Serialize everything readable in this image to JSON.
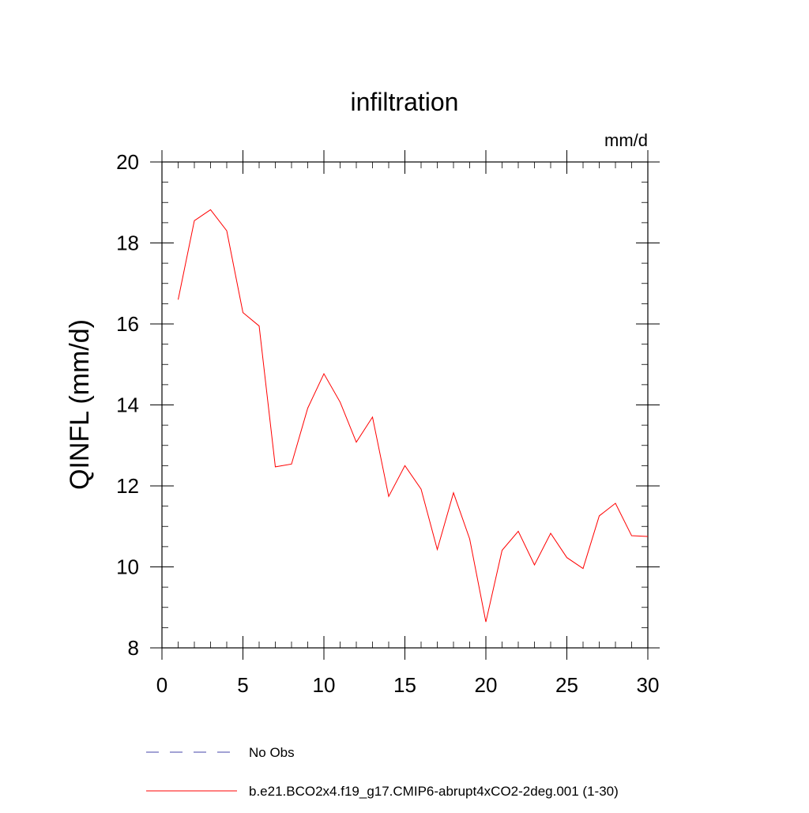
{
  "chart_data": {
    "type": "line",
    "title": "infiltration",
    "units_label": "mm/d",
    "ylabel": "QINFL  (mm/d)",
    "xlabel": "",
    "xlim": [
      0,
      30
    ],
    "ylim": [
      8,
      20
    ],
    "x_ticks": [
      0,
      5,
      10,
      15,
      20,
      25,
      30
    ],
    "y_ticks": [
      8,
      10,
      12,
      14,
      16,
      18,
      20
    ],
    "x_tick_labels": [
      "0",
      "5",
      "10",
      "15",
      "20",
      "25",
      "30"
    ],
    "y_tick_labels": [
      "8",
      "10",
      "12",
      "14",
      "16",
      "18",
      "20"
    ],
    "grid": false,
    "legend_position": "bottom",
    "series": [
      {
        "name": "b.e21.BCO2x4.f19_g17.CMIP6-abrupt4xCO2-2deg.001 (1-30)",
        "color": "#ff0000",
        "style": "solid",
        "x": [
          1,
          2,
          3,
          4,
          5,
          6,
          7,
          8,
          9,
          10,
          11,
          12,
          13,
          14,
          15,
          16,
          17,
          18,
          19,
          20,
          21,
          22,
          23,
          24,
          25,
          26,
          27,
          28,
          29,
          30
        ],
        "values": [
          16.6,
          18.55,
          18.82,
          18.3,
          16.28,
          15.95,
          12.47,
          12.54,
          13.92,
          14.77,
          14.07,
          13.08,
          13.7,
          11.74,
          12.5,
          11.92,
          10.43,
          11.83,
          10.69,
          8.64,
          10.41,
          10.88,
          10.05,
          10.83,
          10.23,
          9.96,
          11.26,
          11.57,
          10.77,
          10.75
        ]
      }
    ],
    "legend": [
      {
        "label": "No Obs",
        "color": "#4444aa",
        "style": "dashed"
      },
      {
        "label": "b.e21.BCO2x4.f19_g17.CMIP6-abrupt4xCO2-2deg.001 (1-30)",
        "color": "#ff0000",
        "style": "solid"
      }
    ]
  }
}
